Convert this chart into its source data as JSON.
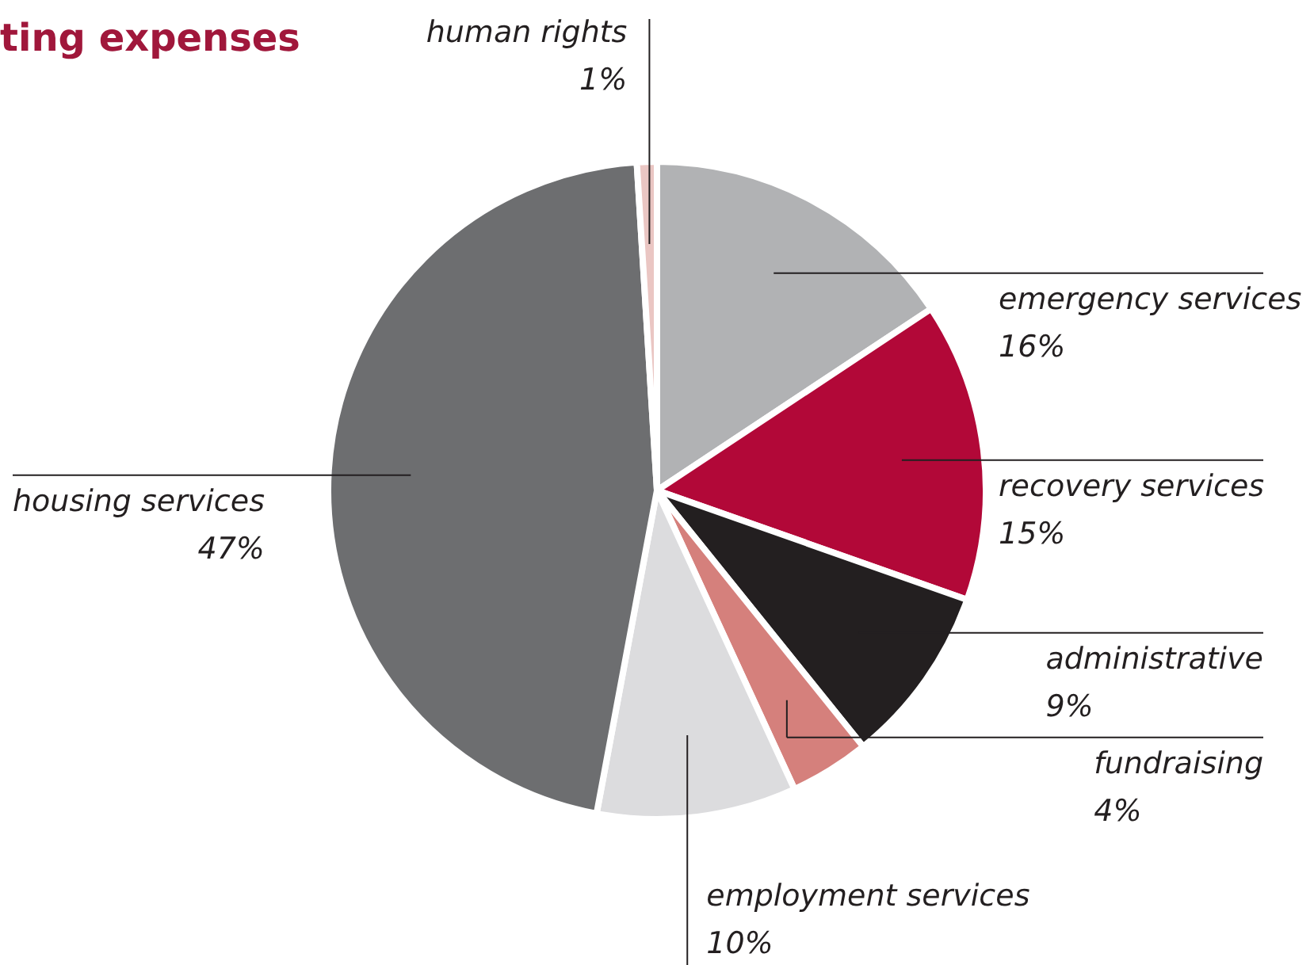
{
  "chart_data": {
    "type": "pie",
    "title": "ting expenses",
    "categories": [
      "emergency services",
      "recovery services",
      "administrative",
      "fundraising",
      "employment services",
      "housing services",
      "human rights"
    ],
    "values": [
      16,
      15,
      9,
      4,
      10,
      47,
      1
    ],
    "value_labels": [
      "16%",
      "15%",
      "9%",
      "4%",
      "10%",
      "47%",
      "1%"
    ],
    "colors": [
      "#b1b2b4",
      "#b20838",
      "#231f20",
      "#d5807c",
      "#dcdcde",
      "#6d6e70",
      "#eac6c3"
    ],
    "legend": false
  }
}
